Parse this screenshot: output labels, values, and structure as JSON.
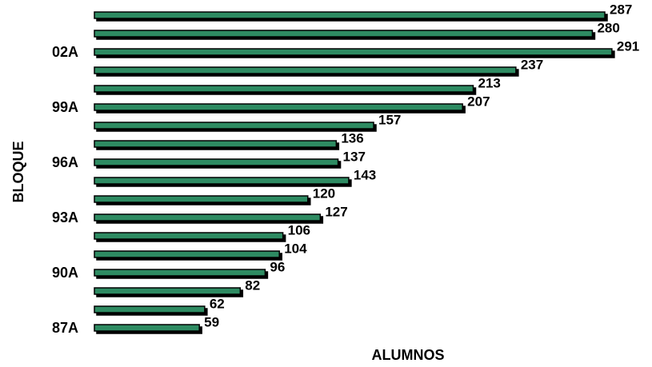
{
  "chart_data": {
    "type": "hbar",
    "y_label": "BLOQUE",
    "x_label": "ALUMNOS",
    "categories": [
      "87A",
      null,
      null,
      "90A",
      null,
      null,
      "93A",
      null,
      null,
      "96A",
      null,
      null,
      "99A",
      null,
      null,
      "02A",
      null,
      null
    ],
    "values": [
      59,
      62,
      82,
      96,
      104,
      106,
      127,
      120,
      143,
      137,
      136,
      157,
      207,
      213,
      237,
      291,
      280,
      287
    ],
    "color": "#2e8b62"
  }
}
